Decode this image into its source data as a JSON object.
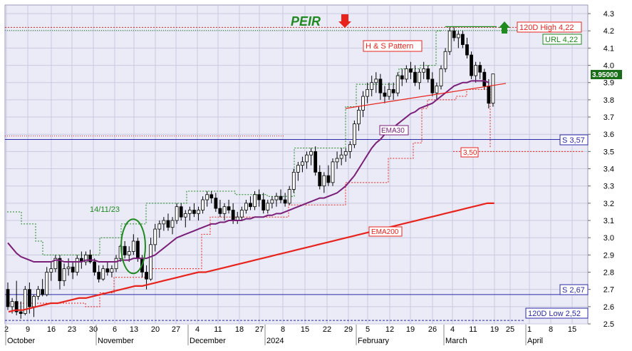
{
  "chart_data": {
    "type": "candlestick",
    "title": "PEIR",
    "colors": {
      "background": "#ebebf7",
      "grid": "#c9c9e0",
      "ema30": "#7a1f7a",
      "ema200": "#e8231c",
      "support": "#2a2aa8",
      "up_arrow": "#1f8a1f",
      "down_arrow": "#e8231c",
      "signal": "#1f8a1f",
      "resistance": "#e8231c",
      "title": "#1f8a1f"
    },
    "ylim": [
      2.5,
      4.35
    ],
    "y_ticks": [
      "2.5",
      "2.6",
      "2.7",
      "2.8",
      "2.9",
      "3.0",
      "3.1",
      "3.2",
      "3.3",
      "3.4",
      "3.5",
      "3.6",
      "3.7",
      "3.8",
      "3.9",
      "4.0",
      "4.1",
      "4.2",
      "4.3"
    ],
    "x_day_labels": [
      "2",
      "9",
      "16",
      "23",
      "30",
      "6",
      "13",
      "20",
      "27",
      "4",
      "11",
      "18",
      "27",
      "8",
      "15",
      "22",
      "29",
      "5",
      "12",
      "19",
      "26",
      "4",
      "11",
      "19",
      "25",
      "1",
      "8",
      "15"
    ],
    "x_month_labels": [
      "October",
      "November",
      "December",
      "2024",
      "February",
      "March",
      "April"
    ],
    "candles": [
      [
        2.7,
        2.74,
        2.58,
        2.6
      ],
      [
        2.6,
        2.65,
        2.56,
        2.63
      ],
      [
        2.63,
        2.75,
        2.55,
        2.57
      ],
      [
        2.57,
        2.63,
        2.53,
        2.56
      ],
      [
        2.56,
        2.72,
        2.55,
        2.7
      ],
      [
        2.7,
        2.74,
        2.56,
        2.6
      ],
      [
        2.6,
        2.67,
        2.54,
        2.66
      ],
      [
        2.66,
        2.72,
        2.64,
        2.7
      ],
      [
        2.7,
        2.76,
        2.66,
        2.67
      ],
      [
        2.67,
        2.83,
        2.66,
        2.8
      ],
      [
        2.8,
        2.86,
        2.75,
        2.82
      ],
      [
        2.82,
        2.9,
        2.8,
        2.88
      ],
      [
        2.88,
        2.9,
        2.7,
        2.75
      ],
      [
        2.75,
        2.85,
        2.72,
        2.82
      ],
      [
        2.82,
        2.88,
        2.78,
        2.83
      ],
      [
        2.83,
        2.86,
        2.76,
        2.8
      ],
      [
        2.8,
        2.9,
        2.78,
        2.88
      ],
      [
        2.88,
        2.92,
        2.82,
        2.86
      ],
      [
        2.86,
        2.92,
        2.84,
        2.9
      ],
      [
        2.9,
        2.93,
        2.85,
        2.86
      ],
      [
        2.86,
        2.88,
        2.78,
        2.8
      ],
      [
        2.8,
        2.84,
        2.74,
        2.76
      ],
      [
        2.76,
        2.84,
        2.75,
        2.82
      ],
      [
        2.82,
        2.86,
        2.78,
        2.8
      ],
      [
        2.8,
        2.84,
        2.77,
        2.82
      ],
      [
        2.82,
        2.9,
        2.8,
        2.88
      ],
      [
        2.88,
        2.96,
        2.86,
        2.95
      ],
      [
        2.95,
        2.98,
        2.88,
        2.9
      ],
      [
        2.9,
        2.95,
        2.86,
        2.92
      ],
      [
        2.92,
        3.02,
        2.9,
        2.98
      ],
      [
        2.98,
        3.0,
        2.86,
        2.88
      ],
      [
        2.88,
        2.9,
        2.77,
        2.8
      ],
      [
        2.8,
        2.84,
        2.7,
        2.76
      ],
      [
        2.76,
        3.0,
        2.75,
        2.96
      ],
      [
        2.96,
        3.08,
        2.92,
        3.05
      ],
      [
        3.05,
        3.1,
        3.0,
        3.08
      ],
      [
        3.08,
        3.12,
        3.04,
        3.1
      ],
      [
        3.1,
        3.14,
        3.04,
        3.06
      ],
      [
        3.06,
        3.12,
        3.02,
        3.1
      ],
      [
        3.1,
        3.2,
        3.08,
        3.18
      ],
      [
        3.18,
        3.2,
        3.1,
        3.12
      ],
      [
        3.12,
        3.16,
        3.06,
        3.14
      ],
      [
        3.14,
        3.18,
        3.1,
        3.16
      ],
      [
        3.16,
        3.2,
        3.12,
        3.14
      ],
      [
        3.14,
        3.18,
        3.1,
        3.16
      ],
      [
        3.16,
        3.24,
        3.14,
        3.22
      ],
      [
        3.22,
        3.27,
        3.18,
        3.25
      ],
      [
        3.25,
        3.27,
        3.2,
        3.23
      ],
      [
        3.23,
        3.26,
        3.15,
        3.17
      ],
      [
        3.17,
        3.22,
        3.12,
        3.14
      ],
      [
        3.14,
        3.2,
        3.1,
        3.18
      ],
      [
        3.18,
        3.22,
        3.14,
        3.16
      ],
      [
        3.16,
        3.2,
        3.08,
        3.1
      ],
      [
        3.1,
        3.15,
        3.08,
        3.12
      ],
      [
        3.12,
        3.18,
        3.1,
        3.16
      ],
      [
        3.16,
        3.22,
        3.14,
        3.2
      ],
      [
        3.2,
        3.24,
        3.16,
        3.18
      ],
      [
        3.18,
        3.27,
        3.16,
        3.25
      ],
      [
        3.25,
        3.28,
        3.18,
        3.22
      ],
      [
        3.22,
        3.26,
        3.14,
        3.16
      ],
      [
        3.16,
        3.22,
        3.14,
        3.2
      ],
      [
        3.2,
        3.24,
        3.17,
        3.22
      ],
      [
        3.22,
        3.26,
        3.18,
        3.24
      ],
      [
        3.24,
        3.28,
        3.2,
        3.22
      ],
      [
        3.22,
        3.26,
        3.18,
        3.2
      ],
      [
        3.2,
        3.3,
        3.19,
        3.28
      ],
      [
        3.28,
        3.4,
        3.26,
        3.38
      ],
      [
        3.38,
        3.44,
        3.33,
        3.42
      ],
      [
        3.42,
        3.47,
        3.38,
        3.44
      ],
      [
        3.44,
        3.5,
        3.4,
        3.48
      ],
      [
        3.48,
        3.52,
        3.42,
        3.5
      ],
      [
        3.5,
        3.53,
        3.36,
        3.38
      ],
      [
        3.38,
        3.42,
        3.28,
        3.3
      ],
      [
        3.3,
        3.38,
        3.26,
        3.36
      ],
      [
        3.36,
        3.42,
        3.3,
        3.32
      ],
      [
        3.32,
        3.46,
        3.3,
        3.44
      ],
      [
        3.44,
        3.5,
        3.4,
        3.46
      ],
      [
        3.46,
        3.52,
        3.42,
        3.48
      ],
      [
        3.48,
        3.52,
        3.44,
        3.5
      ],
      [
        3.5,
        3.56,
        3.46,
        3.54
      ],
      [
        3.54,
        3.68,
        3.52,
        3.66
      ],
      [
        3.66,
        3.76,
        3.62,
        3.74
      ],
      [
        3.74,
        3.85,
        3.7,
        3.82
      ],
      [
        3.82,
        3.9,
        3.78,
        3.86
      ],
      [
        3.86,
        3.94,
        3.82,
        3.9
      ],
      [
        3.9,
        3.96,
        3.84,
        3.92
      ],
      [
        3.92,
        3.95,
        3.8,
        3.84
      ],
      [
        3.84,
        3.88,
        3.78,
        3.82
      ],
      [
        3.82,
        3.9,
        3.8,
        3.86
      ],
      [
        3.86,
        3.9,
        3.8,
        3.84
      ],
      [
        3.84,
        3.96,
        3.82,
        3.94
      ],
      [
        3.94,
        3.98,
        3.88,
        3.92
      ],
      [
        3.92,
        4.0,
        3.9,
        3.98
      ],
      [
        3.98,
        4.02,
        3.92,
        3.96
      ],
      [
        3.96,
        4.0,
        3.88,
        3.9
      ],
      [
        3.9,
        3.98,
        3.86,
        3.96
      ],
      [
        3.96,
        4.02,
        3.92,
        3.98
      ],
      [
        3.98,
        4.0,
        3.9,
        3.92
      ],
      [
        3.92,
        3.96,
        3.82,
        3.84
      ],
      [
        3.84,
        3.9,
        3.8,
        3.88
      ],
      [
        3.88,
        4.0,
        3.86,
        3.98
      ],
      [
        3.98,
        4.1,
        3.96,
        4.08
      ],
      [
        4.08,
        4.22,
        4.06,
        4.2
      ],
      [
        4.2,
        4.22,
        4.14,
        4.16
      ],
      [
        4.16,
        4.2,
        4.1,
        4.18
      ],
      [
        4.18,
        4.2,
        4.1,
        4.12
      ],
      [
        4.12,
        4.16,
        4.04,
        4.06
      ],
      [
        4.06,
        4.08,
        3.92,
        3.94
      ],
      [
        3.94,
        4.02,
        3.9,
        4.0
      ],
      [
        4.0,
        4.02,
        3.92,
        3.96
      ],
      [
        3.96,
        3.98,
        3.86,
        3.88
      ],
      [
        3.88,
        3.92,
        3.75,
        3.78
      ],
      [
        3.78,
        3.95,
        3.76,
        3.95
      ]
    ],
    "ema30": [
      2.97,
      2.94,
      2.91,
      2.89,
      2.88,
      2.87,
      2.86,
      2.86,
      2.86,
      2.86,
      2.86,
      2.87,
      2.87,
      2.86,
      2.86,
      2.86,
      2.86,
      2.86,
      2.87,
      2.87,
      2.87,
      2.86,
      2.86,
      2.86,
      2.86,
      2.86,
      2.87,
      2.87,
      2.87,
      2.88,
      2.88,
      2.88,
      2.88,
      2.89,
      2.9,
      2.92,
      2.94,
      2.96,
      2.98,
      3.0,
      3.01,
      3.02,
      3.03,
      3.04,
      3.05,
      3.06,
      3.07,
      3.08,
      3.08,
      3.09,
      3.09,
      3.1,
      3.1,
      3.1,
      3.1,
      3.11,
      3.11,
      3.12,
      3.12,
      3.12,
      3.13,
      3.13,
      3.14,
      3.14,
      3.15,
      3.16,
      3.17,
      3.18,
      3.19,
      3.2,
      3.21,
      3.22,
      3.23,
      3.23,
      3.24,
      3.25,
      3.26,
      3.28,
      3.3,
      3.33,
      3.36,
      3.4,
      3.44,
      3.48,
      3.52,
      3.55,
      3.57,
      3.6,
      3.62,
      3.64,
      3.66,
      3.68,
      3.7,
      3.72,
      3.73,
      3.75,
      3.76,
      3.77,
      3.78,
      3.8,
      3.82,
      3.84,
      3.86,
      3.88,
      3.89,
      3.9,
      3.9,
      3.91,
      3.91,
      3.91,
      3.91,
      3.9
    ],
    "ema200": [
      2.57,
      2.58,
      2.58,
      2.59,
      2.6,
      2.61,
      2.62,
      2.62,
      2.63,
      2.64,
      2.65,
      2.65,
      2.66,
      2.67,
      2.68,
      2.69,
      2.7,
      2.71,
      2.72,
      2.72,
      2.73,
      2.74,
      2.75,
      2.76,
      2.77,
      2.78,
      2.79,
      2.8,
      2.8,
      2.81,
      2.82,
      2.83,
      2.84,
      2.85,
      2.86,
      2.87,
      2.88,
      2.89,
      2.9,
      2.91,
      2.92,
      2.93,
      2.94,
      2.95,
      2.96,
      2.97,
      2.98,
      2.99,
      3.0,
      3.01,
      3.02,
      3.03,
      3.04,
      3.05,
      3.06,
      3.07,
      3.08,
      3.09,
      3.1,
      3.11,
      3.12,
      3.13,
      3.14,
      3.15,
      3.16,
      3.17,
      3.18,
      3.19,
      3.2,
      3.2
    ],
    "labels": {
      "title": "PEIR",
      "hs_pattern": "H & S Pattern",
      "date_note": "14/11/23",
      "ema30": "EMA30",
      "ema200": "EMA200",
      "high120": "120D High 4,22",
      "url": "URL 4,22",
      "support1": "S 3,57",
      "support2": "S 2,67",
      "low120": "120D Low 2,52",
      "stop": "3,50",
      "last_price": "3.95000"
    },
    "levels": {
      "high120": 4.22,
      "url": 4.215,
      "support1": 3.57,
      "support2": 2.67,
      "low120": 2.52,
      "stop": 3.5,
      "last_price": 3.95
    }
  }
}
